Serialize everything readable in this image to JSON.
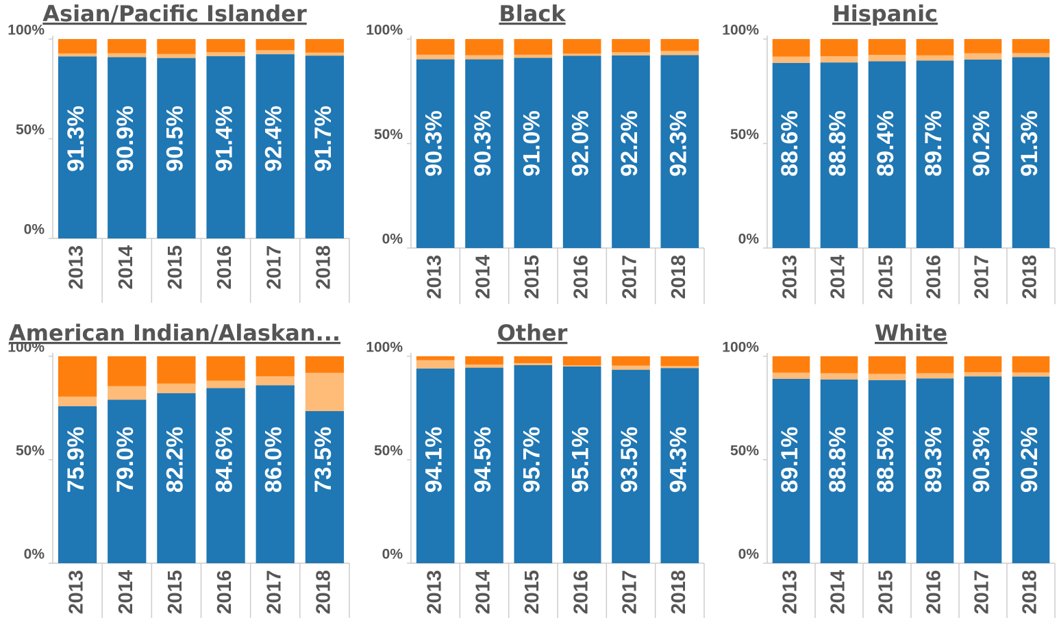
{
  "chart_data": [
    {
      "type": "bar",
      "stacked": true,
      "title": "Asian/Pacific Islander",
      "categories": [
        "2013",
        "2014",
        "2015",
        "2016",
        "2017",
        "2018"
      ],
      "series": [
        {
          "color": "#1f77b4",
          "values": [
            91.3,
            90.9,
            90.5,
            91.4,
            92.4,
            91.7
          ],
          "value_labels": [
            "91.3%",
            "90.9%",
            "90.5%",
            "91.4%",
            "92.4%",
            "91.7%"
          ]
        },
        {
          "color": "#ffbb78",
          "values": [
            1.5,
            2.0,
            2.0,
            2.0,
            2.0,
            1.5
          ]
        },
        {
          "color": "#ff7f0e",
          "values": [
            7.2,
            7.1,
            7.5,
            6.6,
            5.6,
            6.8
          ]
        }
      ],
      "ylim": [
        0,
        100
      ],
      "yticks": [
        {
          "value": 0,
          "label": "0%"
        },
        {
          "value": 50,
          "label": "50%"
        },
        {
          "value": 100,
          "label": "100%"
        }
      ]
    },
    {
      "type": "bar",
      "stacked": true,
      "title": "Black",
      "categories": [
        "2013",
        "2014",
        "2015",
        "2016",
        "2017",
        "2018"
      ],
      "series": [
        {
          "color": "#1f77b4",
          "values": [
            90.3,
            90.3,
            91.0,
            92.0,
            92.2,
            92.3
          ],
          "value_labels": [
            "90.3%",
            "90.3%",
            "91.0%",
            "92.0%",
            "92.2%",
            "92.3%"
          ]
        },
        {
          "color": "#ffbb78",
          "values": [
            2.2,
            2.0,
            1.5,
            1.0,
            1.5,
            2.0
          ]
        },
        {
          "color": "#ff7f0e",
          "values": [
            7.5,
            7.7,
            7.5,
            7.0,
            6.3,
            5.7
          ]
        }
      ],
      "ylim": [
        0,
        100
      ],
      "yticks": [
        {
          "value": 0,
          "label": "0%"
        },
        {
          "value": 50,
          "label": "50%"
        },
        {
          "value": 100,
          "label": "100%"
        }
      ]
    },
    {
      "type": "bar",
      "stacked": true,
      "title": "Hispanic",
      "categories": [
        "2013",
        "2014",
        "2015",
        "2016",
        "2017",
        "2018"
      ],
      "series": [
        {
          "color": "#1f77b4",
          "values": [
            88.6,
            88.8,
            89.4,
            89.7,
            90.2,
            91.3
          ],
          "value_labels": [
            "88.6%",
            "88.8%",
            "89.4%",
            "89.7%",
            "90.2%",
            "91.3%"
          ]
        },
        {
          "color": "#ffbb78",
          "values": [
            3.0,
            3.0,
            3.0,
            2.5,
            3.0,
            2.0
          ]
        },
        {
          "color": "#ff7f0e",
          "values": [
            8.4,
            8.2,
            7.6,
            7.8,
            6.8,
            6.7
          ]
        }
      ],
      "ylim": [
        0,
        100
      ],
      "yticks": [
        {
          "value": 0,
          "label": "0%"
        },
        {
          "value": 50,
          "label": "50%"
        },
        {
          "value": 100,
          "label": "100%"
        }
      ]
    },
    {
      "type": "bar",
      "stacked": true,
      "title": "American Indian/Alaskan...",
      "categories": [
        "2013",
        "2014",
        "2015",
        "2016",
        "2017",
        "2018"
      ],
      "series": [
        {
          "color": "#1f77b4",
          "values": [
            75.9,
            79.0,
            82.2,
            84.6,
            86.0,
            73.5
          ],
          "value_labels": [
            "75.9%",
            "79.0%",
            "82.2%",
            "84.6%",
            "86.0%",
            "73.5%"
          ]
        },
        {
          "color": "#ffbb78",
          "values": [
            4.6,
            6.6,
            4.6,
            3.6,
            4.3,
            18.5
          ]
        },
        {
          "color": "#ff7f0e",
          "values": [
            19.5,
            14.4,
            13.2,
            11.8,
            9.7,
            8.0
          ]
        }
      ],
      "ylim": [
        0,
        100
      ],
      "yticks": [
        {
          "value": 0,
          "label": "0%"
        },
        {
          "value": 50,
          "label": "50%"
        },
        {
          "value": 100,
          "label": "100%"
        }
      ]
    },
    {
      "type": "bar",
      "stacked": true,
      "title": "Other",
      "categories": [
        "2013",
        "2014",
        "2015",
        "2016",
        "2017",
        "2018"
      ],
      "series": [
        {
          "color": "#1f77b4",
          "values": [
            94.1,
            94.5,
            95.7,
            95.1,
            93.5,
            94.3
          ],
          "value_labels": [
            "94.1%",
            "94.5%",
            "95.7%",
            "95.1%",
            "93.5%",
            "94.3%"
          ]
        },
        {
          "color": "#ffbb78",
          "values": [
            4.0,
            1.5,
            1.0,
            0.5,
            2.0,
            1.0
          ]
        },
        {
          "color": "#ff7f0e",
          "values": [
            1.9,
            4.0,
            3.3,
            4.4,
            4.5,
            4.7
          ]
        }
      ],
      "ylim": [
        0,
        100
      ],
      "yticks": [
        {
          "value": 0,
          "label": "0%"
        },
        {
          "value": 50,
          "label": "50%"
        },
        {
          "value": 100,
          "label": "100%"
        }
      ]
    },
    {
      "type": "bar",
      "stacked": true,
      "title": "White",
      "categories": [
        "2013",
        "2014",
        "2015",
        "2016",
        "2017",
        "2018"
      ],
      "series": [
        {
          "color": "#1f77b4",
          "values": [
            89.1,
            88.8,
            88.5,
            89.3,
            90.3,
            90.2
          ],
          "value_labels": [
            "89.1%",
            "88.8%",
            "88.5%",
            "89.3%",
            "90.3%",
            "90.2%"
          ]
        },
        {
          "color": "#ffbb78",
          "values": [
            3.0,
            3.0,
            3.0,
            2.5,
            2.0,
            2.0
          ]
        },
        {
          "color": "#ff7f0e",
          "values": [
            7.9,
            8.2,
            8.5,
            8.2,
            7.7,
            7.8
          ]
        }
      ],
      "ylim": [
        0,
        100
      ],
      "yticks": [
        {
          "value": 0,
          "label": "0%"
        },
        {
          "value": 50,
          "label": "50%"
        },
        {
          "value": 100,
          "label": "100%"
        }
      ]
    }
  ]
}
